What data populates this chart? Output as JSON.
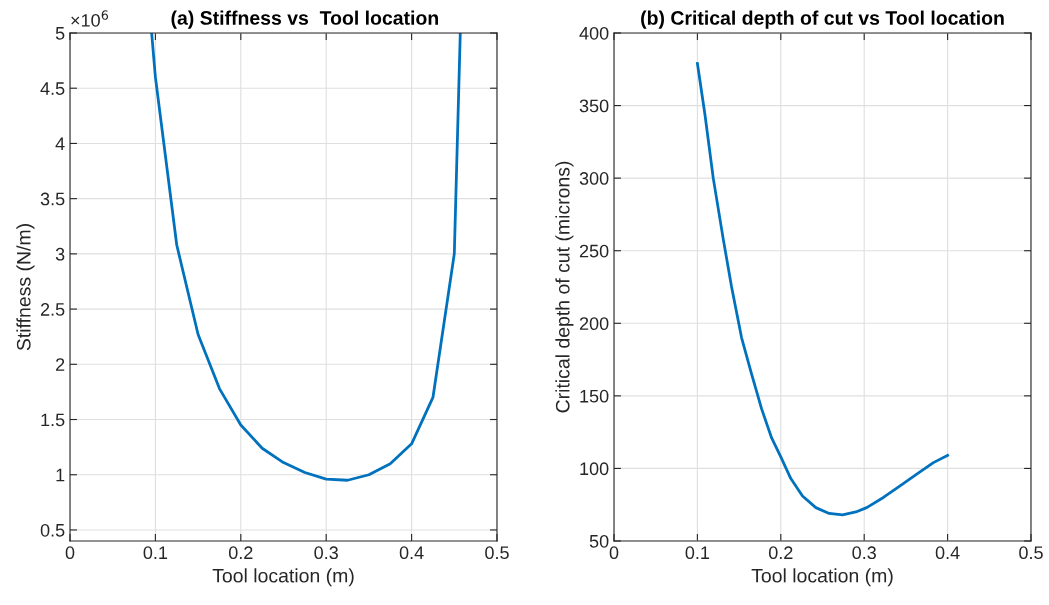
{
  "chart_data": [
    {
      "type": "line",
      "title": "(a) Stiffness vs  Tool location",
      "xlabel": "Tool location (m)",
      "ylabel": "Stiffness (N/m)",
      "x": [
        0.0956,
        0.1,
        0.125,
        0.15,
        0.175,
        0.2,
        0.225,
        0.25,
        0.275,
        0.3,
        0.325,
        0.35,
        0.375,
        0.4,
        0.425,
        0.45,
        0.457
      ],
      "series": [
        {
          "color": "#0072bd",
          "values": [
            5,
            4.6,
            3.08,
            2.27,
            1.78,
            1.45,
            1.24,
            1.11,
            1.02,
            0.96,
            0.95,
            1.0,
            1.1,
            1.28,
            1.7,
            3.0,
            5
          ]
        }
      ],
      "xlim": [
        0,
        0.5
      ],
      "xticks": [
        0,
        0.1,
        0.2,
        0.3,
        0.4,
        0.5
      ],
      "ylim": [
        0.4,
        5
      ],
      "yticks": [
        0.5,
        1,
        1.5,
        2,
        2.5,
        3,
        3.5,
        4,
        4.5,
        5
      ],
      "annotations": [
        "×10$^{6}$"
      ],
      "grid": true,
      "marker": "none",
      "line_style": "solid"
    },
    {
      "type": "line",
      "title": "(b) Critical depth of cut vs Tool location",
      "xlabel": "Tool location (m)",
      "ylabel": "Critical depth of cut (microns)",
      "x": [
        0.1,
        0.109,
        0.119,
        0.131,
        0.141,
        0.153,
        0.165,
        0.177,
        0.189,
        0.2,
        0.212,
        0.226,
        0.242,
        0.258,
        0.274,
        0.29,
        0.303,
        0.323,
        0.343,
        0.363,
        0.383,
        0.4
      ],
      "series": [
        {
          "color": "#0072bd",
          "values": [
            379,
            344,
            300,
            258,
            225,
            190,
            165,
            141,
            121,
            108,
            93,
            81,
            73,
            69,
            68,
            70,
            73,
            80,
            88,
            96,
            104,
            109
          ]
        }
      ],
      "xlim": [
        0,
        0.5
      ],
      "xticks": [
        0,
        0.1,
        0.2,
        0.3,
        0.4,
        0.5
      ],
      "ylim": [
        50,
        400
      ],
      "yticks": [
        50,
        100,
        150,
        200,
        250,
        300,
        350,
        400
      ],
      "grid": true,
      "marker": "none",
      "line_style": "solid"
    }
  ]
}
